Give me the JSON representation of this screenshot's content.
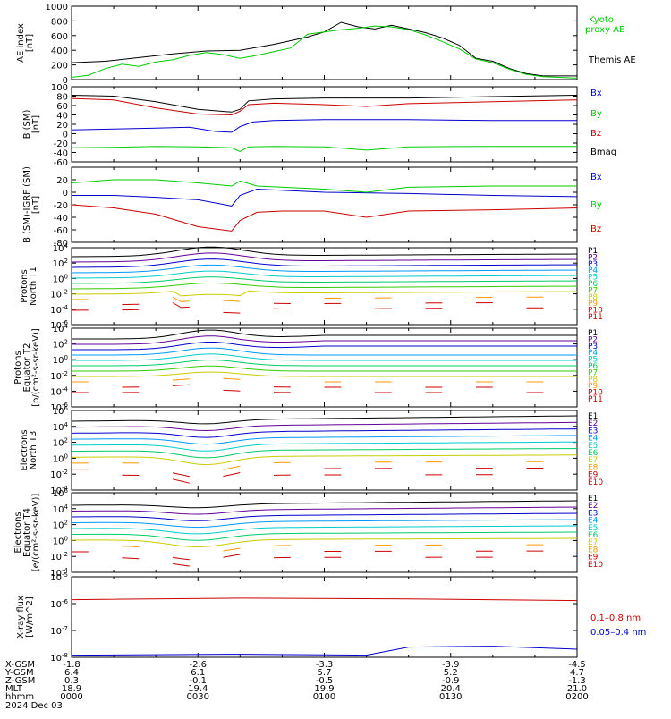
{
  "chart_data": [
    {
      "type": "line",
      "id": "ae",
      "ylabel": [
        "AE index",
        "[nT]"
      ],
      "ylim": [
        0,
        1000
      ],
      "yticks": [
        "0",
        "200",
        "400",
        "600",
        "800",
        "1000"
      ],
      "series": [
        {
          "name": "Themis AE",
          "color": "#000000",
          "x": [
            0,
            8,
            16,
            24,
            32,
            40,
            48,
            56,
            60,
            64,
            68,
            72,
            76,
            80,
            84,
            88,
            92,
            96,
            100,
            104,
            108,
            112,
            120
          ],
          "y": [
            230,
            250,
            300,
            350,
            390,
            400,
            480,
            580,
            650,
            780,
            720,
            690,
            740,
            690,
            640,
            570,
            470,
            290,
            250,
            150,
            80,
            50,
            50
          ]
        },
        {
          "name": "Kyoto proxy AE",
          "color": "#00cc00",
          "x": [
            0,
            4,
            8,
            12,
            16,
            20,
            24,
            28,
            32,
            36,
            40,
            44,
            48,
            52,
            56,
            60,
            64,
            68,
            72,
            76,
            80,
            84,
            88,
            92,
            96,
            100,
            104,
            108,
            112,
            120
          ],
          "y": [
            30,
            60,
            150,
            210,
            180,
            240,
            270,
            330,
            370,
            340,
            290,
            330,
            380,
            430,
            620,
            650,
            680,
            700,
            730,
            720,
            680,
            610,
            520,
            420,
            280,
            230,
            140,
            70,
            40,
            20
          ]
        }
      ],
      "legend": [
        "Kyoto",
        "proxy AE",
        "Themis AE"
      ]
    },
    {
      "type": "line",
      "id": "bsm",
      "ylabel": [
        "B (SM)",
        "[nT]"
      ],
      "ylim": [
        -60,
        100
      ],
      "yticks": [
        "-60",
        "-40",
        "-20",
        "0",
        "20",
        "40",
        "60",
        "80",
        "100"
      ],
      "series": [
        {
          "name": "Bx",
          "color": "#0000cc",
          "x": [
            0,
            10,
            20,
            28,
            34,
            38,
            40,
            43,
            48,
            60,
            80,
            100,
            120
          ],
          "y": [
            8,
            10,
            12,
            14,
            5,
            3,
            15,
            25,
            28,
            30,
            30,
            28,
            28
          ]
        },
        {
          "name": "By",
          "color": "#00cc00",
          "x": [
            0,
            10,
            20,
            30,
            38,
            40,
            42,
            48,
            60,
            70,
            80,
            100,
            120
          ],
          "y": [
            -30,
            -29,
            -27,
            -28,
            -30,
            -38,
            -28,
            -27,
            -28,
            -35,
            -28,
            -27,
            -27
          ]
        },
        {
          "name": "Bz",
          "color": "#cc0000",
          "x": [
            0,
            10,
            20,
            30,
            38,
            40,
            42,
            48,
            60,
            70,
            80,
            100,
            120
          ],
          "y": [
            75,
            72,
            55,
            42,
            40,
            48,
            62,
            65,
            62,
            58,
            64,
            68,
            72
          ]
        },
        {
          "name": "Bmag",
          "color": "#000000",
          "x": [
            0,
            10,
            20,
            30,
            38,
            40,
            42,
            48,
            60,
            80,
            100,
            120
          ],
          "y": [
            82,
            80,
            68,
            52,
            46,
            52,
            70,
            74,
            76,
            76,
            79,
            82
          ]
        }
      ],
      "legend": [
        "Bx",
        "By",
        "Bz",
        "Bmag"
      ]
    },
    {
      "type": "line",
      "id": "bdiff",
      "ylabel": [
        "B (SM)-IGRF (SM)",
        "[nT]"
      ],
      "ylim": [
        -80,
        40
      ],
      "yticks": [
        "-80",
        "-60",
        "-40",
        "-20",
        "0",
        "20"
      ],
      "series": [
        {
          "name": "Bx",
          "color": "#0000cc",
          "x": [
            0,
            10,
            20,
            30,
            38,
            40,
            44,
            60,
            80,
            100,
            120
          ],
          "y": [
            -5,
            -5,
            -8,
            -12,
            -22,
            -5,
            5,
            0,
            -2,
            -5,
            -7
          ]
        },
        {
          "name": "By",
          "color": "#00cc00",
          "x": [
            0,
            10,
            20,
            30,
            38,
            40,
            44,
            60,
            70,
            80,
            100,
            120
          ],
          "y": [
            15,
            20,
            20,
            15,
            10,
            18,
            10,
            5,
            0,
            8,
            10,
            10
          ]
        },
        {
          "name": "Bz",
          "color": "#cc0000",
          "x": [
            0,
            10,
            20,
            30,
            38,
            40,
            44,
            50,
            60,
            70,
            80,
            100,
            120
          ],
          "y": [
            -20,
            -25,
            -35,
            -55,
            -62,
            -45,
            -32,
            -30,
            -30,
            -40,
            -30,
            -28,
            -25
          ]
        }
      ],
      "legend": [
        "Bx",
        "By",
        "Bz"
      ]
    },
    {
      "type": "line",
      "id": "pn",
      "ylabel": [
        "Protons",
        "North T1"
      ],
      "ylim": [
        "1e-6",
        "1e4"
      ],
      "yticks": [
        "10^4",
        "10^2",
        "10^0",
        "10^-2",
        "10^-4",
        "10^-6"
      ],
      "legend": [
        "P1",
        "P2",
        "P3",
        "P4",
        "P5",
        "P6",
        "P7",
        "P8",
        "P9",
        "P10",
        "P11"
      ]
    },
    {
      "type": "line",
      "id": "pe",
      "ylabel": [
        "Protons",
        "Equator T2",
        "[p/(cm²-s-sr-keV)]"
      ],
      "ylim": [
        "1e-6",
        "1e4"
      ],
      "yticks": [
        "10^4",
        "10^2",
        "10^0",
        "10^-2",
        "10^-4",
        "10^-6"
      ],
      "legend": [
        "P1",
        "P2",
        "P3",
        "P4",
        "P5",
        "P6",
        "P7",
        "P8",
        "P9",
        "P10",
        "P11"
      ]
    },
    {
      "type": "line",
      "id": "en",
      "ylabel": [
        "Electrons",
        "North T3"
      ],
      "ylim": [
        "1e-4",
        "1e6"
      ],
      "yticks": [
        "10^6",
        "10^4",
        "10^2",
        "10^0",
        "10^-2",
        "10^-4"
      ],
      "legend": [
        "E1",
        "E2",
        "E3",
        "E4",
        "E5",
        "E6",
        "E7",
        "E8",
        "E9",
        "E10"
      ]
    },
    {
      "type": "line",
      "id": "ee",
      "ylabel": [
        "Electrons",
        "Equator T4",
        "[e/(cm²-s-sr-keV)]"
      ],
      "ylim": [
        "1e-4",
        "1e6"
      ],
      "yticks": [
        "10^6",
        "10^4",
        "10^2",
        "10^0",
        "10^-2",
        "10^-4"
      ],
      "legend": [
        "E1",
        "E2",
        "E3",
        "E4",
        "E5",
        "E6",
        "E7",
        "E8",
        "E9",
        "E10"
      ]
    },
    {
      "type": "line",
      "id": "xray",
      "ylabel": [
        "X-ray flux",
        "[W/m^2]"
      ],
      "ylim": [
        "1e-8",
        "1e-5"
      ],
      "yticks": [
        "10^-5",
        "10^-6",
        "10^-7",
        "10^-8"
      ],
      "series": [
        {
          "name": "0.1-0.8 nm",
          "color": "#cc0000",
          "x": [
            0,
            40,
            80,
            120
          ],
          "y": [
            "1.4e-6",
            "1.6e-6",
            "1.5e-6",
            "1.3e-6"
          ]
        },
        {
          "name": "0.05-0.4 nm",
          "color": "#0000cc",
          "x": [
            0,
            40,
            70,
            80,
            100,
            120
          ],
          "y": [
            "1.2e-8",
            "1.3e-8",
            "1.2e-8",
            "2.4e-8",
            "2.6e-8",
            "2.0e-8"
          ]
        }
      ],
      "legend": [
        "0.1–0.8 nm",
        "0.05–0.4 nm"
      ]
    }
  ],
  "flux_colors": {
    "proton": [
      "#000000",
      "#660099",
      "#0000cc",
      "#0099ff",
      "#00cccc",
      "#00cc66",
      "#33cc00",
      "#cccc00",
      "#ff9900",
      "#cc0000",
      "#cc0000"
    ],
    "electron": [
      "#000000",
      "#660099",
      "#0000cc",
      "#0099ff",
      "#00cccc",
      "#00cc66",
      "#cccc00",
      "#ff9900",
      "#cc0000",
      "#cc0000"
    ]
  },
  "axis_table": {
    "rows": [
      {
        "label": "X-GSM",
        "values": [
          "-1.8",
          "-2.6",
          "-3.3",
          "-3.9",
          "-4.5"
        ]
      },
      {
        "label": "Y-GSM",
        "values": [
          "6.4",
          "6.1",
          "5.7",
          "5.2",
          "4.7"
        ]
      },
      {
        "label": "Z-GSM",
        "values": [
          "0.3",
          "-0.1",
          "-0.5",
          "-0.9",
          "-1.3"
        ]
      },
      {
        "label": "MLT",
        "values": [
          "18.9",
          "19.4",
          "19.9",
          "20.4",
          "21.0"
        ]
      },
      {
        "label": "hhmm",
        "values": [
          "0000",
          "0030",
          "0100",
          "0130",
          "0200"
        ]
      }
    ],
    "date": "2024 Dec 03"
  }
}
